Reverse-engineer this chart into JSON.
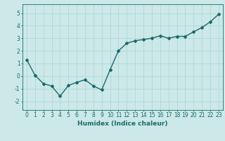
{
  "x": [
    0,
    1,
    2,
    3,
    4,
    5,
    6,
    7,
    8,
    9,
    10,
    11,
    12,
    13,
    14,
    15,
    16,
    17,
    18,
    19,
    20,
    21,
    22,
    23
  ],
  "y": [
    1.3,
    0.05,
    -0.6,
    -0.8,
    -1.6,
    -0.75,
    -0.5,
    -0.3,
    -0.8,
    -1.1,
    0.5,
    2.0,
    2.6,
    2.8,
    2.9,
    3.0,
    3.2,
    3.0,
    3.15,
    3.15,
    3.5,
    3.85,
    4.3,
    4.9
  ],
  "line_color": "#1a6b6b",
  "marker": "D",
  "markersize": 2.0,
  "linewidth": 1.0,
  "xlabel": "Humidex (Indice chaleur)",
  "xlim": [
    -0.5,
    23.5
  ],
  "ylim": [
    -2.7,
    5.7
  ],
  "yticks": [
    -2,
    -1,
    0,
    1,
    2,
    3,
    4,
    5
  ],
  "xticks": [
    0,
    1,
    2,
    3,
    4,
    5,
    6,
    7,
    8,
    9,
    10,
    11,
    12,
    13,
    14,
    15,
    16,
    17,
    18,
    19,
    20,
    21,
    22,
    23
  ],
  "background_color": "#cce8e8",
  "grid_color": "#b0d8d8",
  "tick_fontsize": 5.5,
  "xlabel_fontsize": 6.5
}
